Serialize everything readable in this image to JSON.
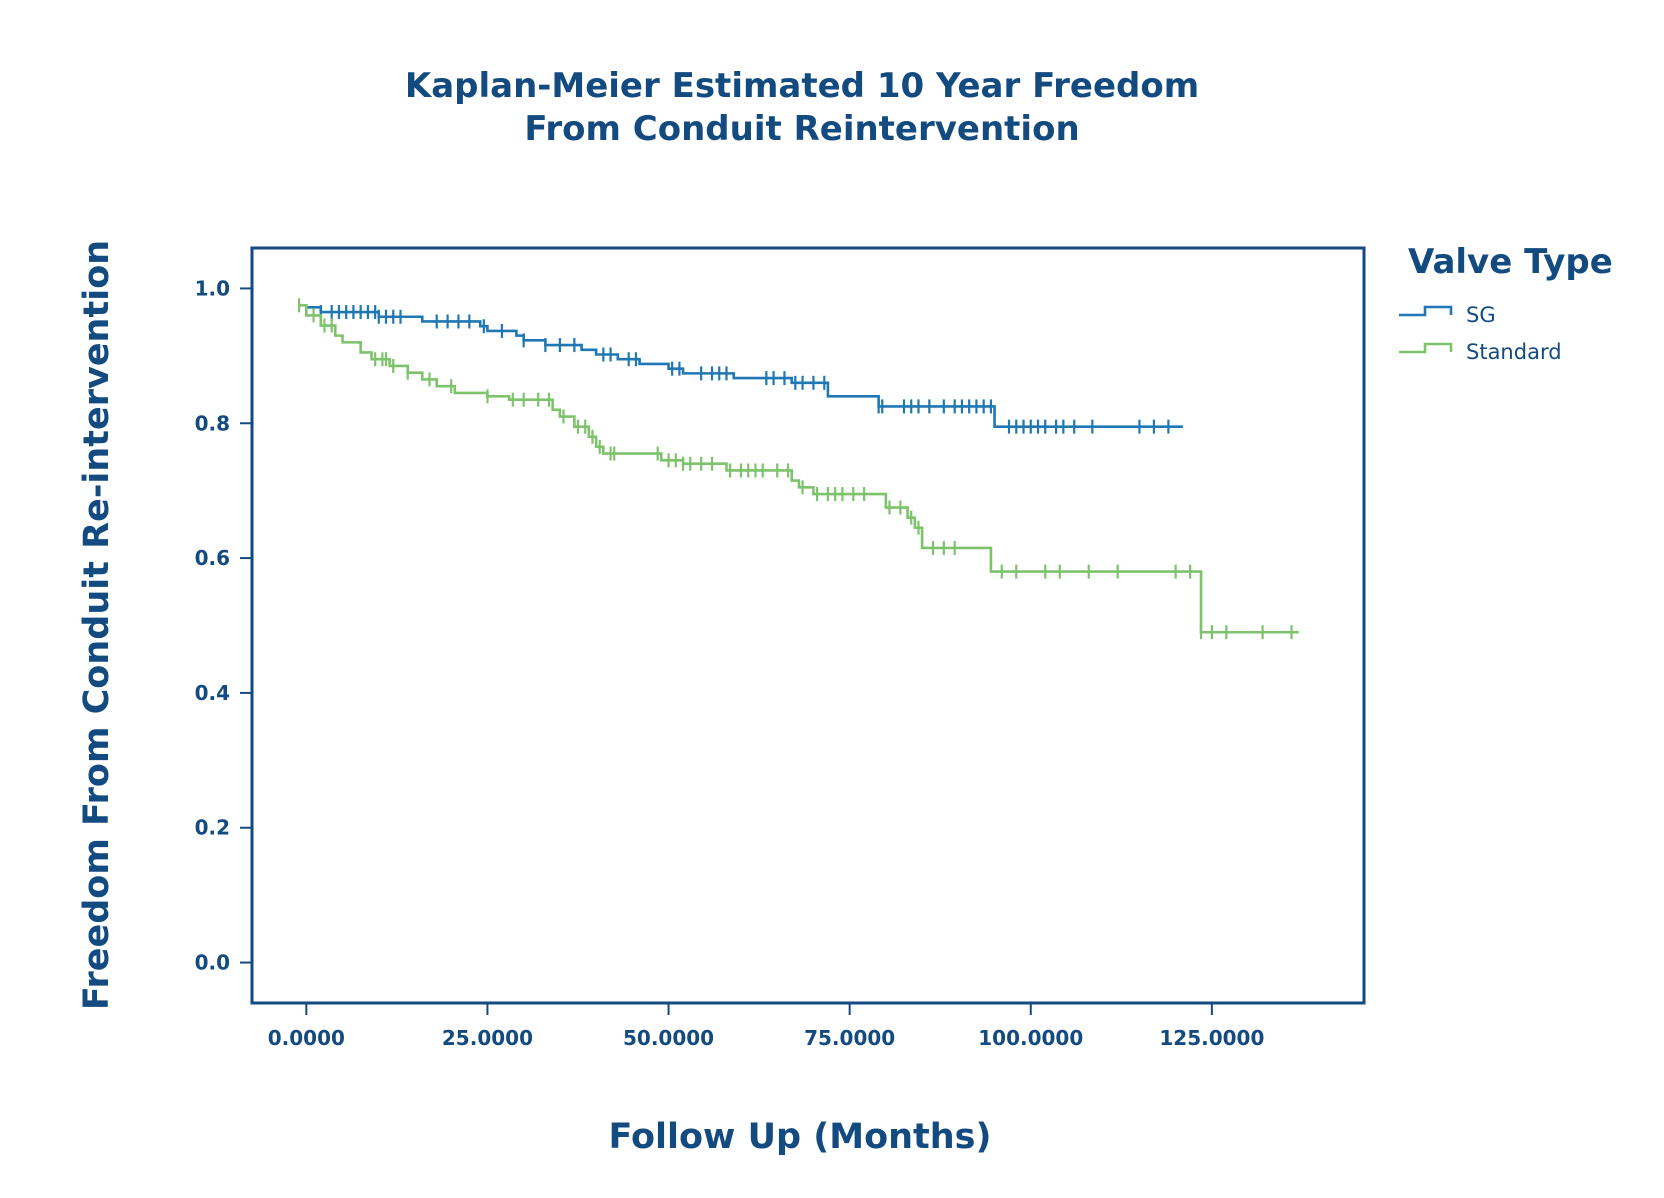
{
  "chart_data": {
    "type": "line",
    "title_lines": [
      "Kaplan-Meier Estimated 10 Year Freedom",
      "From Conduit Reintervention"
    ],
    "xlabel": "Follow Up (Months)",
    "ylabel": "Freedom From Conduit Re-intervention",
    "xlim": [
      -7.5,
      146
    ],
    "ylim": [
      -0.06,
      1.06
    ],
    "x_ticks": [
      0,
      25,
      50,
      75,
      100,
      125
    ],
    "x_tick_labels": [
      "0.0000",
      "25.0000",
      "50.0000",
      "75.0000",
      "100.0000",
      "125.0000"
    ],
    "y_ticks": [
      0.0,
      0.2,
      0.4,
      0.6,
      0.8,
      1.0
    ],
    "y_tick_labels": [
      "0.0",
      "0.2",
      "0.4",
      "0.6",
      "0.8",
      "1.0"
    ],
    "grid": false,
    "legend": {
      "title": "Valve Type",
      "position": "right"
    },
    "colors": {
      "text": "#134a80",
      "axis": "#134a80"
    },
    "series": [
      {
        "name": "SG",
        "color": "#1f77b4",
        "steps": [
          [
            0,
            0.972
          ],
          [
            2,
            0.965
          ],
          [
            10,
            0.958
          ],
          [
            16,
            0.951
          ],
          [
            24,
            0.944
          ],
          [
            25,
            0.937
          ],
          [
            29,
            0.93
          ],
          [
            30,
            0.923
          ],
          [
            33,
            0.916
          ],
          [
            38,
            0.909
          ],
          [
            40,
            0.902
          ],
          [
            43,
            0.895
          ],
          [
            46,
            0.888
          ],
          [
            50,
            0.881
          ],
          [
            52,
            0.874
          ],
          [
            59,
            0.867
          ],
          [
            67,
            0.86
          ],
          [
            72,
            0.84
          ],
          [
            79,
            0.825
          ],
          [
            95,
            0.795
          ],
          [
            121,
            0.795
          ]
        ],
        "censored": [
          2,
          3.5,
          4.5,
          5.5,
          6.5,
          7.5,
          8.5,
          9.5,
          10,
          11,
          12,
          13,
          18,
          19.5,
          21,
          22.5,
          24.5,
          27,
          30,
          33,
          35,
          37,
          41,
          42,
          44.5,
          45.5,
          50.5,
          51.5,
          54.5,
          56,
          57,
          58,
          63.5,
          64.5,
          66,
          67.5,
          68.5,
          70,
          71.5,
          79,
          79.5,
          82.5,
          83.5,
          84.5,
          86,
          88,
          89.5,
          90.5,
          91.5,
          92.5,
          93.5,
          94.5,
          97,
          98,
          99,
          100,
          101,
          102,
          103.5,
          104.5,
          106,
          108.5,
          115,
          117,
          119
        ]
      },
      {
        "name": "Standard",
        "color": "#7dc36b",
        "steps": [
          [
            -1,
            0.975
          ],
          [
            0,
            0.96
          ],
          [
            2,
            0.945
          ],
          [
            4,
            0.93
          ],
          [
            5,
            0.92
          ],
          [
            7.5,
            0.905
          ],
          [
            9,
            0.895
          ],
          [
            11.5,
            0.885
          ],
          [
            14,
            0.875
          ],
          [
            16,
            0.865
          ],
          [
            18,
            0.855
          ],
          [
            20.5,
            0.845
          ],
          [
            25,
            0.84
          ],
          [
            28,
            0.835
          ],
          [
            34,
            0.82
          ],
          [
            35,
            0.81
          ],
          [
            37,
            0.795
          ],
          [
            39,
            0.78
          ],
          [
            40,
            0.765
          ],
          [
            41,
            0.755
          ],
          [
            49,
            0.745
          ],
          [
            52,
            0.74
          ],
          [
            58,
            0.73
          ],
          [
            67,
            0.715
          ],
          [
            68,
            0.705
          ],
          [
            70,
            0.695
          ],
          [
            80,
            0.675
          ],
          [
            83,
            0.66
          ],
          [
            84,
            0.645
          ],
          [
            85,
            0.615
          ],
          [
            94.5,
            0.58
          ],
          [
            123.5,
            0.49
          ],
          [
            137,
            0.49
          ]
        ],
        "censored": [
          -1,
          1,
          2.5,
          3.5,
          9.5,
          10.5,
          11,
          12,
          14,
          17,
          20,
          25,
          28.5,
          30,
          32,
          33.5,
          35.5,
          37.5,
          38.5,
          39.5,
          40.5,
          42,
          42.5,
          48.5,
          50,
          51,
          52,
          53,
          54.5,
          56,
          58.5,
          60,
          61,
          62,
          63,
          65,
          66.5,
          68.5,
          70.5,
          72,
          73,
          74,
          75.5,
          77,
          80.5,
          82,
          83.5,
          84.5,
          86.5,
          88,
          89.5,
          96,
          98,
          102,
          104,
          108,
          112,
          120,
          122,
          123.5,
          125,
          127,
          132,
          136
        ]
      }
    ]
  }
}
